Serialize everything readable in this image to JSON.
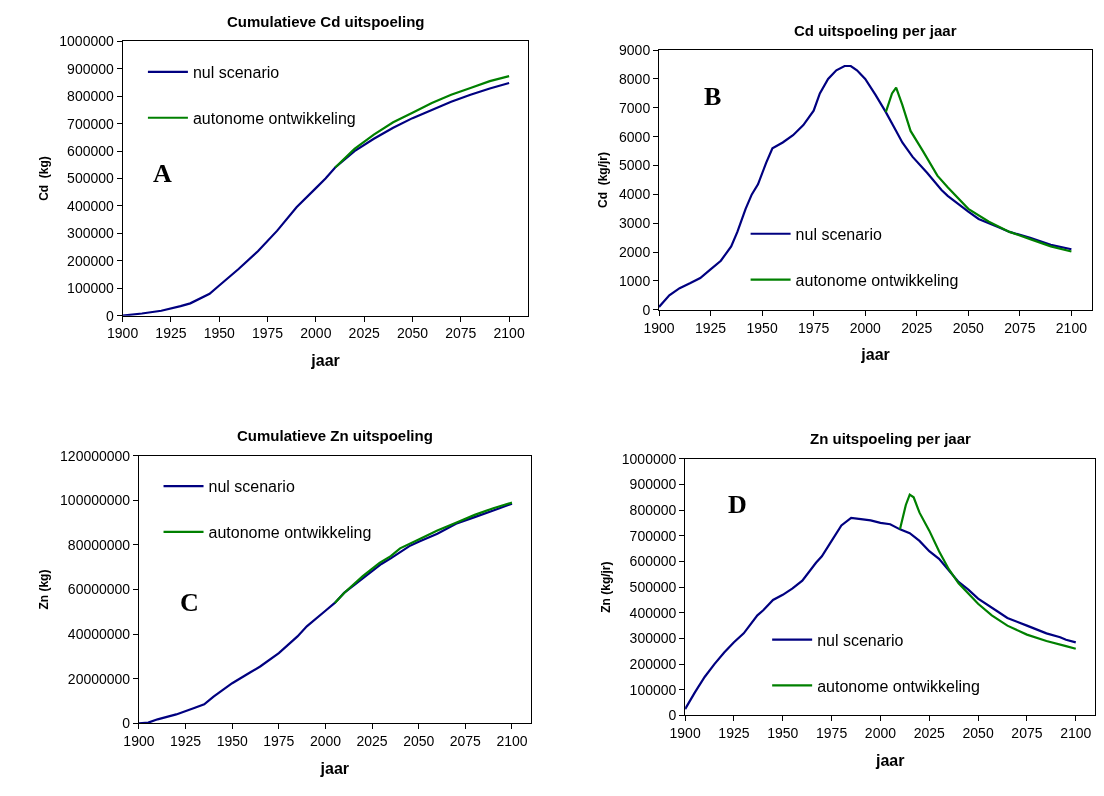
{
  "chart_data": [
    {
      "type": "line",
      "title": "Cumulatieve Cd uitspoeling",
      "xlabel": "jaar",
      "ylabel": "Cd  (kg)",
      "annotations": [
        "A"
      ],
      "legend": "top left",
      "xlim": [
        1900,
        2110
      ],
      "xticks": [
        1900,
        1925,
        1950,
        1975,
        2000,
        2025,
        2050,
        2075,
        2100
      ],
      "ylim": [
        0,
        1000000
      ],
      "yticks": [
        0,
        100000,
        200000,
        300000,
        400000,
        500000,
        600000,
        700000,
        800000,
        900000,
        1000000
      ],
      "series": [
        {
          "name": "nul scenario",
          "color": "#000080",
          "x": [
            1900,
            1910,
            1920,
            1930,
            1935,
            1945,
            1950,
            1960,
            1970,
            1980,
            1990,
            2000,
            2005,
            2010,
            2020,
            2030,
            2040,
            2050,
            2060,
            2070,
            2080,
            2090,
            2100
          ],
          "values": [
            0,
            8000,
            18000,
            35000,
            45000,
            80000,
            110000,
            170000,
            235000,
            310000,
            395000,
            465000,
            500000,
            540000,
            600000,
            645000,
            685000,
            720000,
            750000,
            780000,
            805000,
            828000,
            848000
          ]
        },
        {
          "name": "autonome ontwikkeling",
          "color": "#008000",
          "x": [
            2010,
            2020,
            2030,
            2040,
            2050,
            2060,
            2070,
            2080,
            2090,
            2100
          ],
          "values": [
            540000,
            608000,
            660000,
            705000,
            740000,
            775000,
            805000,
            830000,
            855000,
            873000
          ]
        }
      ]
    },
    {
      "type": "line",
      "title": "Cd uitspoeling per jaar",
      "xlabel": "jaar",
      "ylabel": "Cd  (kg/jr)",
      "annotations": [
        "B"
      ],
      "legend": "bottom",
      "xlim": [
        1900,
        2110
      ],
      "xticks": [
        1900,
        1925,
        1950,
        1975,
        2000,
        2025,
        2050,
        2075,
        2100
      ],
      "ylim": [
        0,
        9000
      ],
      "yticks": [
        0,
        1000,
        2000,
        3000,
        4000,
        5000,
        6000,
        7000,
        8000,
        9000
      ],
      "series": [
        {
          "name": "nul scenario",
          "color": "#000080",
          "x": [
            1900,
            1905,
            1910,
            1915,
            1920,
            1925,
            1930,
            1935,
            1938,
            1942,
            1945,
            1948,
            1952,
            1955,
            1960,
            1965,
            1970,
            1975,
            1978,
            1982,
            1986,
            1990,
            1993,
            1996,
            2000,
            2005,
            2010,
            2015,
            2018,
            2023,
            2030,
            2037,
            2040,
            2050,
            2055,
            2065,
            2070,
            2080,
            2090,
            2100
          ],
          "values": [
            100,
            500,
            750,
            920,
            1100,
            1400,
            1700,
            2200,
            2700,
            3500,
            4000,
            4350,
            5100,
            5600,
            5800,
            6050,
            6400,
            6900,
            7500,
            8000,
            8300,
            8450,
            8450,
            8300,
            8000,
            7450,
            6850,
            6200,
            5800,
            5300,
            4750,
            4150,
            3950,
            3400,
            3150,
            2850,
            2700,
            2500,
            2250,
            2100
          ]
        },
        {
          "name": "autonome ontwikkeling",
          "color": "#008000",
          "x": [
            2010,
            2013,
            2015,
            2018,
            2022,
            2028,
            2035,
            2040,
            2050,
            2060,
            2070,
            2080,
            2090,
            2100
          ],
          "values": [
            6850,
            7500,
            7700,
            7100,
            6200,
            5500,
            4650,
            4250,
            3500,
            3050,
            2700,
            2450,
            2200,
            2020
          ]
        }
      ]
    },
    {
      "type": "line",
      "title": "Cumulatieve Zn uitspoeling",
      "xlabel": "jaar",
      "ylabel": "Zn (kg)",
      "annotations": [
        "C"
      ],
      "legend": "top left",
      "xlim": [
        1900,
        2110
      ],
      "xticks": [
        1900,
        1925,
        1950,
        1975,
        2000,
        2025,
        2050,
        2075,
        2100
      ],
      "ylim": [
        0,
        120000000
      ],
      "yticks": [
        0,
        20000000,
        40000000,
        60000000,
        80000000,
        100000000,
        120000000
      ],
      "series": [
        {
          "name": "nul scenario",
          "color": "#000080",
          "x": [
            1900,
            1905,
            1910,
            1920,
            1930,
            1935,
            1940,
            1950,
            1960,
            1965,
            1975,
            1985,
            1990,
            2000,
            2005,
            2010,
            2020,
            2030,
            2035,
            2045,
            2050,
            2060,
            2070,
            2080,
            2090,
            2100
          ],
          "values": [
            0,
            300000,
            1800000,
            4000000,
            7000000,
            8500000,
            12000000,
            18000000,
            23000000,
            25500000,
            31500000,
            39000000,
            43500000,
            50500000,
            54000000,
            58500000,
            65000000,
            71500000,
            74000000,
            79500000,
            81500000,
            85000000,
            89500000,
            92500000,
            95500000,
            98500000
          ]
        },
        {
          "name": "autonome ontwikkeling",
          "color": "#008000",
          "x": [
            2005,
            2010,
            2020,
            2029,
            2035,
            2040,
            2050,
            2060,
            2070,
            2080,
            2090,
            2100
          ],
          "values": [
            54000000,
            58500000,
            66000000,
            72000000,
            75000000,
            78500000,
            82500000,
            86500000,
            90000000,
            93500000,
            96500000,
            99000000
          ]
        }
      ]
    },
    {
      "type": "line",
      "title": "Zn uitspoeling per jaar",
      "xlabel": "jaar",
      "ylabel": "Zn (kg/jr)",
      "annotations": [
        "D"
      ],
      "legend": "bottom",
      "xlim": [
        1900,
        2110
      ],
      "xticks": [
        1900,
        1925,
        1950,
        1975,
        2000,
        2025,
        2050,
        2075,
        2100
      ],
      "ylim": [
        0,
        1000000
      ],
      "yticks": [
        0,
        100000,
        200000,
        300000,
        400000,
        500000,
        600000,
        700000,
        800000,
        900000,
        1000000
      ],
      "series": [
        {
          "name": "nul scenario",
          "color": "#000080",
          "x": [
            1900,
            1905,
            1910,
            1915,
            1920,
            1925,
            1930,
            1937,
            1940,
            1945,
            1950,
            1955,
            1960,
            1967,
            1970,
            1975,
            1980,
            1985,
            1990,
            1995,
            2000,
            2005,
            2010,
            2015,
            2020,
            2025,
            2030,
            2040,
            2045,
            2050,
            2060,
            2065,
            2075,
            2085,
            2092,
            2095,
            2100
          ],
          "values": [
            25000,
            90000,
            150000,
            200000,
            245000,
            285000,
            320000,
            390000,
            410000,
            450000,
            470000,
            495000,
            525000,
            595000,
            620000,
            680000,
            740000,
            770000,
            765000,
            760000,
            750000,
            745000,
            725000,
            710000,
            680000,
            640000,
            610000,
            520000,
            490000,
            455000,
            405000,
            380000,
            350000,
            320000,
            305000,
            295000,
            285000
          ]
        },
        {
          "name": "autonome ontwikkeling",
          "color": "#008000",
          "x": [
            2010,
            2013,
            2015,
            2017,
            2020,
            2025,
            2030,
            2035,
            2040,
            2045,
            2050,
            2057,
            2065,
            2075,
            2085,
            2095,
            2100
          ],
          "values": [
            725000,
            820000,
            860000,
            850000,
            790000,
            720000,
            640000,
            570000,
            515000,
            475000,
            435000,
            390000,
            350000,
            315000,
            290000,
            270000,
            260000
          ]
        }
      ]
    }
  ]
}
